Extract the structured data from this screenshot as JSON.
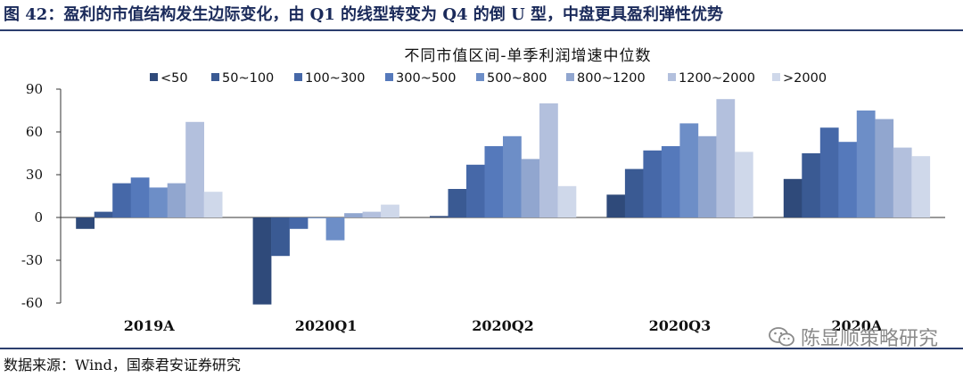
{
  "figure_title": "图 42：盈利的市值结构发生边际变化，由 Q1 的线型转变为 Q4 的倒 U 型，中盘更具盈利弹性优势",
  "source": "数据来源：Wind，国泰君安证券研究",
  "watermark": "陈显顺策略研究",
  "watermark_icon": "wechat-icon",
  "chart_data": {
    "type": "bar",
    "title": "不同市值区间-单季利润增速中位数",
    "categories": [
      "2019A",
      "2020Q1",
      "2020Q2",
      "2020Q3",
      "2020A"
    ],
    "ylim": [
      -60,
      90
    ],
    "yticks": [
      90,
      60,
      30,
      0,
      -30,
      -60
    ],
    "grid": false,
    "legend_position": "top",
    "series": [
      {
        "name": "<50",
        "color": "#2f4a7a",
        "values": [
          -8,
          -61,
          1,
          16,
          27
        ]
      },
      {
        "name": "50~100",
        "color": "#3a5a93",
        "values": [
          4,
          -27,
          20,
          34,
          45
        ]
      },
      {
        "name": "100~300",
        "color": "#4668a8",
        "values": [
          24,
          -8,
          37,
          47,
          63
        ]
      },
      {
        "name": "300~500",
        "color": "#5579bb",
        "values": [
          28,
          0,
          50,
          50,
          53
        ]
      },
      {
        "name": "500~800",
        "color": "#6d8ec7",
        "values": [
          21,
          -16,
          57,
          66,
          75
        ]
      },
      {
        "name": "800~1200",
        "color": "#91a6cf",
        "values": [
          24,
          3,
          41,
          57,
          69
        ]
      },
      {
        "name": "1200~2000",
        "color": "#b3c0dd",
        "values": [
          67,
          4,
          80,
          83,
          49
        ]
      },
      {
        "name": ">2000",
        "color": "#cfd8ea",
        "values": [
          18,
          9,
          22,
          46,
          43
        ]
      }
    ]
  }
}
